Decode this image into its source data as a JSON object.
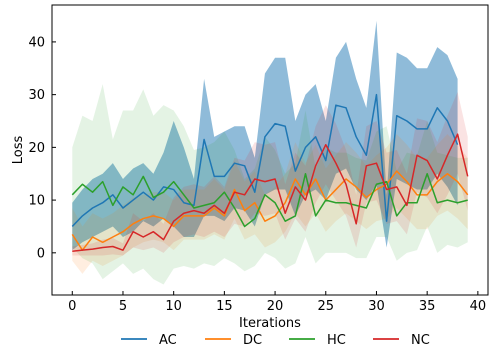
{
  "chart_data": {
    "type": "line",
    "title": "",
    "xlabel": "Iterations",
    "ylabel": "Loss",
    "xlim": [
      -2,
      41
    ],
    "ylim": [
      -8,
      47
    ],
    "xticks": [
      0,
      5,
      10,
      15,
      20,
      25,
      30,
      35,
      40
    ],
    "yticks": [
      0,
      10,
      20,
      30,
      40
    ],
    "grid": false,
    "legend_position": "bottom",
    "x": [
      0,
      1,
      2,
      3,
      4,
      5,
      6,
      7,
      8,
      9,
      10,
      11,
      12,
      13,
      14,
      15,
      16,
      17,
      18,
      19,
      20,
      21,
      22,
      23,
      24,
      25,
      26,
      27,
      28,
      29,
      30,
      31,
      32,
      33,
      34,
      35,
      36,
      37,
      38,
      39
    ],
    "series": [
      {
        "name": "AC",
        "color": "#1f77b4",
        "values": [
          5.0,
          7.0,
          8.5,
          9.5,
          11.0,
          8.5,
          10.0,
          11.5,
          10.0,
          12.5,
          12.0,
          9.5,
          9.0,
          21.5,
          14.5,
          14.5,
          17.0,
          16.5,
          11.5,
          22.0,
          24.5,
          24.0,
          15.5,
          20.0,
          22.0,
          17.5,
          28.0,
          27.5,
          22.0,
          18.5,
          30.0,
          6.0,
          26.0,
          25.0,
          23.5,
          23.5,
          27.5,
          25.0,
          20.5,
          null
        ],
        "lower": [
          0.5,
          2.0,
          3.0,
          4.0,
          5.0,
          3.0,
          4.0,
          6.0,
          5.0,
          6.5,
          5.0,
          3.0,
          3.0,
          7.0,
          7.0,
          6.0,
          8.5,
          8.0,
          5.0,
          11.0,
          12.0,
          12.0,
          7.0,
          11.0,
          12.0,
          10.0,
          15.0,
          16.0,
          12.0,
          10.0,
          13.0,
          1.0,
          14.0,
          13.0,
          12.0,
          12.0,
          15.0,
          12.5,
          9.0,
          null
        ],
        "upper": [
          9.5,
          12.0,
          14.0,
          15.0,
          17.0,
          14.0,
          16.0,
          17.0,
          15.0,
          19.0,
          25.0,
          20.0,
          14.0,
          33.0,
          22.0,
          23.0,
          24.0,
          24.0,
          18.0,
          34.0,
          37.0,
          37.0,
          25.0,
          30.0,
          32.0,
          25.0,
          37.0,
          40.0,
          33.0,
          27.5,
          44.0,
          11.0,
          38.0,
          37.0,
          35.0,
          35.0,
          39.0,
          37.5,
          33.0,
          null
        ]
      },
      {
        "name": "DC",
        "color": "#ff7f0e",
        "values": [
          3.5,
          0.5,
          3.0,
          2.0,
          3.0,
          4.0,
          5.5,
          6.5,
          7.0,
          6.5,
          5.0,
          7.0,
          7.0,
          7.0,
          8.5,
          7.0,
          12.0,
          8.0,
          9.5,
          6.0,
          7.0,
          9.5,
          14.0,
          11.0,
          14.0,
          10.0,
          12.0,
          14.0,
          12.5,
          10.5,
          12.0,
          13.0,
          15.5,
          13.5,
          11.0,
          11.0,
          13.5,
          15.0,
          13.5,
          11.0
        ],
        "lower": [
          -1.5,
          -4.0,
          -1.5,
          -2.5,
          -1.5,
          -0.5,
          1.0,
          2.0,
          2.5,
          2.0,
          0.5,
          2.5,
          2.5,
          2.5,
          3.5,
          2.5,
          6.5,
          2.5,
          3.5,
          1.0,
          2.0,
          4.0,
          7.5,
          5.0,
          7.5,
          4.0,
          6.0,
          7.5,
          6.0,
          4.5,
          6.0,
          6.5,
          8.5,
          6.5,
          4.5,
          4.5,
          7.0,
          8.0,
          6.5,
          4.5
        ],
        "upper": [
          8.5,
          5.0,
          7.5,
          6.5,
          7.5,
          9.0,
          10.5,
          11.0,
          11.5,
          11.5,
          10.0,
          12.0,
          12.0,
          12.0,
          14.0,
          12.0,
          17.5,
          13.5,
          15.5,
          11.0,
          12.5,
          15.0,
          21.0,
          17.0,
          20.5,
          16.0,
          18.5,
          21.0,
          19.0,
          16.5,
          18.5,
          20.0,
          22.5,
          20.5,
          18.0,
          18.0,
          20.5,
          22.5,
          20.5,
          18.0
        ]
      },
      {
        "name": "HC",
        "color": "#2ca02c",
        "values": [
          11.0,
          13.0,
          11.5,
          13.5,
          9.0,
          12.5,
          11.0,
          14.5,
          10.5,
          11.5,
          13.5,
          11.0,
          8.5,
          9.0,
          9.5,
          11.5,
          8.5,
          5.0,
          6.5,
          11.0,
          9.5,
          6.0,
          7.0,
          15.0,
          7.0,
          10.0,
          9.5,
          9.5,
          9.0,
          8.5,
          13.0,
          13.5,
          7.0,
          9.5,
          9.5,
          15.0,
          9.5,
          10.0,
          9.5,
          10.0
        ],
        "lower": [
          1.0,
          -1.0,
          -2.0,
          -5.0,
          -3.5,
          -2.0,
          -4.0,
          -3.0,
          -5.0,
          -6.0,
          -3.0,
          -2.5,
          -3.0,
          -2.0,
          -2.5,
          -1.0,
          -2.0,
          -3.5,
          -2.5,
          0.0,
          -1.0,
          -3.0,
          -2.0,
          3.0,
          -2.0,
          0.0,
          0.0,
          0.0,
          -1.0,
          -1.0,
          3.0,
          3.0,
          -1.5,
          0.0,
          0.5,
          5.0,
          0.0,
          1.5,
          1.0,
          2.0
        ],
        "upper": [
          20.0,
          26.0,
          25.0,
          32.0,
          21.5,
          27.0,
          27.0,
          31.0,
          26.0,
          28.0,
          27.0,
          24.0,
          19.5,
          20.0,
          21.0,
          23.0,
          19.5,
          14.0,
          16.0,
          22.0,
          19.5,
          15.0,
          17.0,
          27.0,
          16.0,
          20.0,
          19.0,
          19.0,
          18.0,
          17.5,
          23.0,
          24.0,
          15.5,
          19.0,
          18.5,
          25.0,
          19.0,
          18.5,
          18.0,
          18.0
        ]
      },
      {
        "name": "NC",
        "color": "#d62728",
        "values": [
          0.3,
          0.5,
          0.7,
          1.0,
          1.2,
          0.5,
          4.0,
          3.0,
          4.0,
          2.5,
          6.0,
          7.5,
          8.0,
          7.5,
          9.0,
          7.5,
          11.5,
          11.0,
          14.0,
          13.5,
          14.0,
          7.5,
          12.5,
          10.0,
          16.5,
          20.5,
          17.0,
          13.0,
          5.5,
          16.5,
          17.0,
          12.0,
          12.5,
          9.0,
          18.5,
          17.5,
          14.0,
          18.5,
          22.5,
          14.5
        ],
        "lower": [
          -0.5,
          -0.5,
          -0.5,
          -0.5,
          -0.3,
          -0.5,
          1.0,
          0.5,
          1.0,
          0.0,
          2.0,
          3.0,
          3.5,
          3.0,
          4.0,
          3.0,
          5.5,
          5.0,
          7.5,
          7.0,
          7.5,
          2.5,
          6.5,
          4.0,
          9.5,
          13.0,
          10.0,
          7.0,
          1.0,
          9.5,
          10.0,
          5.5,
          6.0,
          3.5,
          11.5,
          10.5,
          7.5,
          11.0,
          15.0,
          8.0
        ],
        "upper": [
          1.2,
          1.5,
          1.8,
          2.5,
          2.8,
          1.8,
          7.5,
          6.0,
          7.5,
          5.5,
          10.5,
          12.5,
          13.0,
          12.5,
          14.5,
          12.5,
          18.0,
          17.5,
          21.0,
          20.5,
          21.0,
          13.0,
          19.0,
          16.5,
          24.0,
          28.0,
          24.5,
          19.5,
          11.0,
          24.0,
          25.0,
          19.0,
          19.5,
          15.0,
          25.5,
          25.0,
          21.0,
          26.0,
          30.5,
          22.0
        ]
      }
    ]
  }
}
